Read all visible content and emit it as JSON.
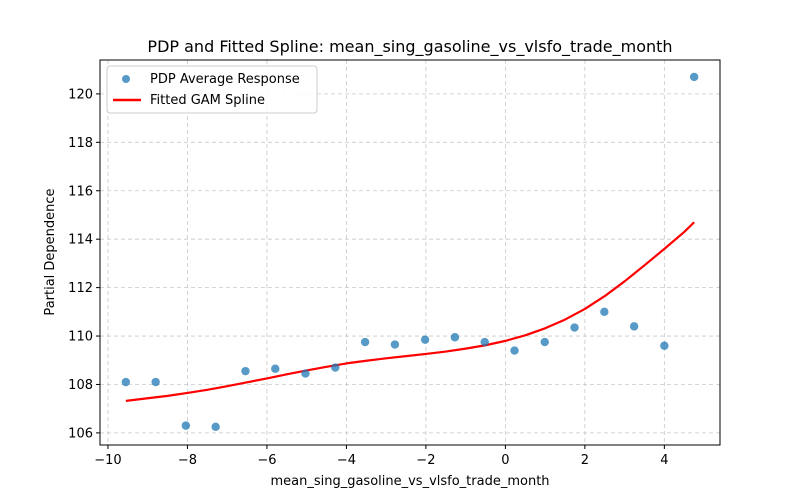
{
  "chart_data": {
    "type": "scatter",
    "title": "PDP and Fitted Spline: mean_sing_gasoline_vs_vlsfo_trade_month",
    "xlabel": "mean_sing_gasoline_vs_vlsfo_trade_month",
    "ylabel": "Partial Dependence",
    "xlim": [
      -10.2,
      5.4
    ],
    "ylim": [
      105.5,
      121.4
    ],
    "x_ticks": [
      -10,
      -8,
      -6,
      -4,
      -2,
      0,
      2,
      4
    ],
    "x_tick_labels": [
      "−10",
      "−8",
      "−6",
      "−4",
      "−2",
      "0",
      "2",
      "4"
    ],
    "y_ticks": [
      106,
      108,
      110,
      112,
      114,
      116,
      118,
      120
    ],
    "y_tick_labels": [
      "106",
      "108",
      "110",
      "112",
      "114",
      "116",
      "118",
      "120"
    ],
    "grid": true,
    "legend_position": "top-left",
    "series": [
      {
        "name": "PDP Average Response",
        "kind": "scatter",
        "color": "#1f77b4",
        "x": [
          -9.55,
          -8.8,
          -8.04,
          -7.29,
          -6.54,
          -5.79,
          -5.03,
          -4.28,
          -3.53,
          -2.78,
          -2.02,
          -1.27,
          -0.52,
          0.23,
          0.99,
          1.74,
          2.49,
          3.24,
          4.0,
          4.75
        ],
        "y": [
          108.1,
          108.1,
          106.3,
          106.25,
          108.55,
          108.65,
          108.45,
          108.7,
          109.75,
          109.65,
          109.85,
          109.95,
          109.75,
          109.4,
          109.75,
          110.35,
          111.0,
          110.4,
          109.6,
          120.7
        ]
      },
      {
        "name": "Fitted GAM Spline",
        "kind": "line",
        "color": "#ff0000",
        "x": [
          -9.55,
          -9.0,
          -8.5,
          -8.0,
          -7.5,
          -7.0,
          -6.5,
          -6.0,
          -5.5,
          -5.0,
          -4.5,
          -4.0,
          -3.5,
          -3.0,
          -2.5,
          -2.0,
          -1.5,
          -1.0,
          -0.5,
          0.0,
          0.5,
          1.0,
          1.5,
          2.0,
          2.5,
          3.0,
          3.5,
          4.0,
          4.5,
          4.75
        ],
        "y": [
          107.32,
          107.43,
          107.53,
          107.65,
          107.78,
          107.93,
          108.09,
          108.25,
          108.42,
          108.58,
          108.73,
          108.87,
          108.98,
          109.08,
          109.17,
          109.26,
          109.36,
          109.48,
          109.62,
          109.8,
          110.03,
          110.32,
          110.68,
          111.12,
          111.65,
          112.26,
          112.92,
          113.6,
          114.3,
          114.7
        ]
      }
    ]
  }
}
